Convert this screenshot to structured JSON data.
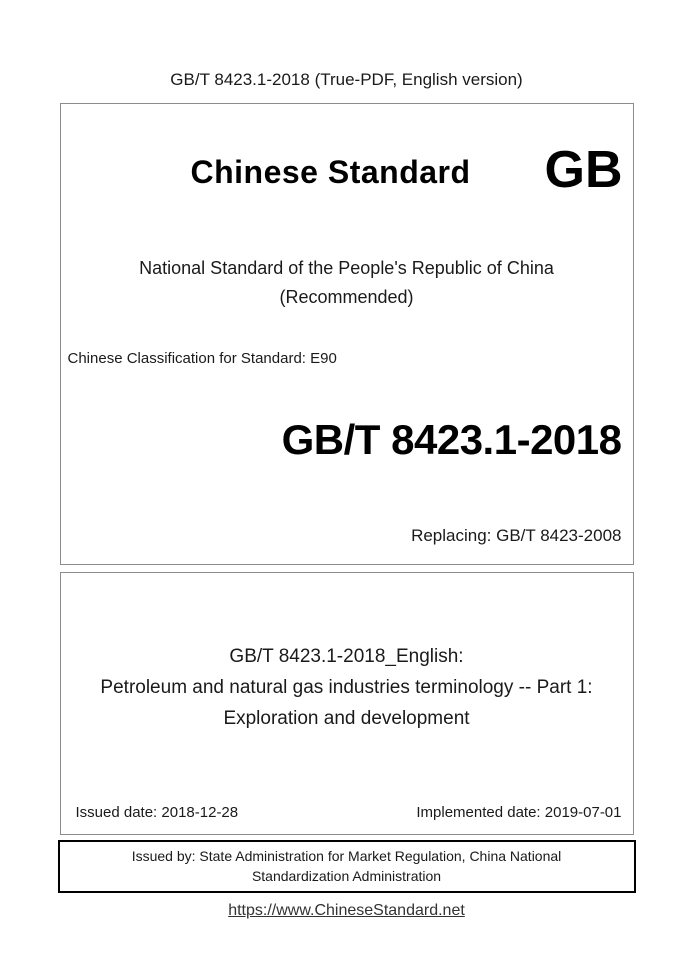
{
  "page": {
    "header": "GB/T 8423.1-2018 (True-PDF, English version)",
    "footer_link": "https://www.ChineseStandard.net"
  },
  "cover": {
    "brand_title": "Chinese Standard",
    "brand_logo": "GB",
    "national_line": "National Standard of the People's Republic of China",
    "recommended_line": "(Recommended)",
    "classification": "Chinese Classification for Standard: E90",
    "standard_number": "GB/T 8423.1-2018",
    "replacing": "Replacing: GB/T 8423-2008"
  },
  "title_section": {
    "line1": "GB/T 8423.1-2018_English:",
    "line2": "Petroleum and natural gas industries terminology -- Part 1:",
    "line3": "Exploration and development",
    "issued_date": "Issued date: 2018-12-28",
    "implemented_date": "Implemented date: 2019-07-01"
  },
  "issuer": {
    "text": "Issued by: State Administration for Market Regulation, China National Standardization Administration"
  },
  "colors": {
    "border_gray": "#8c8c8c",
    "border_black": "#000000",
    "text": "#1a1a1a",
    "link": "#333333"
  }
}
